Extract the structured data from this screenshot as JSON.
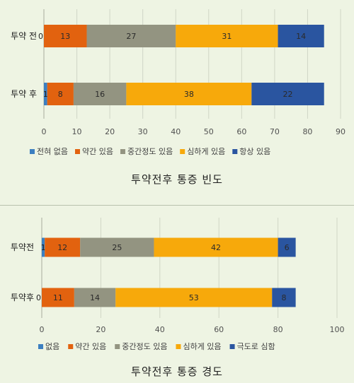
{
  "chart_data": [
    {
      "type": "bar",
      "stacked": true,
      "orientation": "horizontal",
      "title": "투약전후 통증 빈도",
      "categories": [
        "투약 전",
        "투약 후"
      ],
      "series": [
        {
          "name": "전혀 없음",
          "values": [
            0,
            1
          ],
          "color": "#3c7fc0"
        },
        {
          "name": "약간 있음",
          "values": [
            13,
            8
          ],
          "color": "#e2620f"
        },
        {
          "name": "중간정도 있음",
          "values": [
            27,
            16
          ],
          "color": "#939481"
        },
        {
          "name": "심하게 있음",
          "values": [
            31,
            38
          ],
          "color": "#f7a90b"
        },
        {
          "name": "항상 있음",
          "values": [
            14,
            22
          ],
          "color": "#2a55a0"
        }
      ],
      "xlim": [
        0,
        90
      ],
      "xticks": [
        0,
        10,
        20,
        30,
        40,
        50,
        60,
        70,
        80,
        90
      ],
      "grid": true,
      "legend": "bottom"
    },
    {
      "type": "bar",
      "stacked": true,
      "orientation": "horizontal",
      "title": "투약전후 통증 경도",
      "categories": [
        "투약전",
        "투약후"
      ],
      "series": [
        {
          "name": "없음",
          "values": [
            1,
            0
          ],
          "color": "#3c7fc0"
        },
        {
          "name": "약간 있음",
          "values": [
            12,
            11
          ],
          "color": "#e2620f"
        },
        {
          "name": "중간정도 있음",
          "values": [
            25,
            14
          ],
          "color": "#939481"
        },
        {
          "name": "심하게 있음",
          "values": [
            42,
            53
          ],
          "color": "#f7a90b"
        },
        {
          "name": "극도로 심함",
          "values": [
            6,
            8
          ],
          "color": "#2a55a0"
        }
      ],
      "xlim": [
        0,
        100
      ],
      "xticks": [
        0,
        20,
        40,
        60,
        80,
        100
      ],
      "grid": true,
      "legend": "bottom"
    }
  ]
}
